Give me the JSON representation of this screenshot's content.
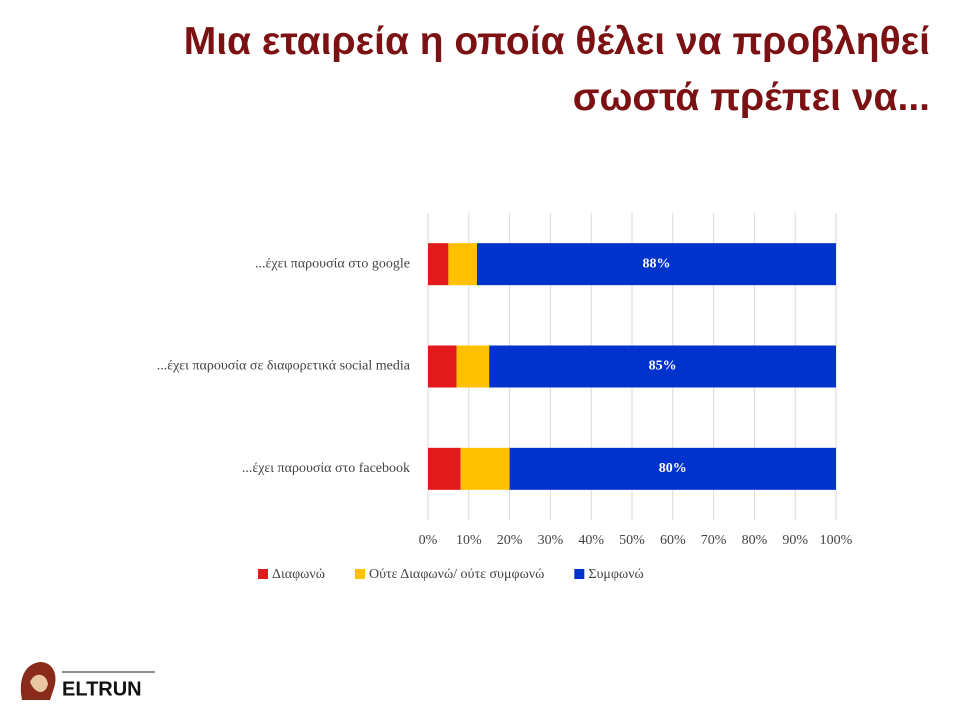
{
  "title": "Μια εταιρεία η οποία θέλει να προβληθεί σωστά πρέπει να...",
  "chart_data": {
    "type": "stacked_barh",
    "categories": [
      "...έχει παρουσία στο google",
      "...έχει παρουσία σε διαφορετικά social media",
      "...έχει παρουσία στο facebook"
    ],
    "series": [
      {
        "name": "Διαφωνώ",
        "color": "#e31a1c",
        "values": [
          5,
          7,
          8
        ]
      },
      {
        "name": "Ούτε Διαφωνώ/ ούτε συμφωνώ",
        "color": "#ffc000",
        "values": [
          7,
          8,
          12
        ]
      },
      {
        "name": "Συμφωνώ",
        "color": "#0033cc",
        "values": [
          88,
          85,
          80
        ],
        "value_labels": [
          "88%",
          "85%",
          "80%"
        ]
      }
    ],
    "xlim": [
      0,
      100
    ],
    "xticks": [
      {
        "value": 0,
        "label": "0%"
      },
      {
        "value": 10,
        "label": "10%"
      },
      {
        "value": 20,
        "label": "20%"
      },
      {
        "value": 30,
        "label": "30%"
      },
      {
        "value": 40,
        "label": "40%"
      },
      {
        "value": 50,
        "label": "50%"
      },
      {
        "value": 60,
        "label": "60%"
      },
      {
        "value": 70,
        "label": "70%"
      },
      {
        "value": 80,
        "label": "80%"
      },
      {
        "value": 90,
        "label": "90%"
      },
      {
        "value": 100,
        "label": "100%"
      }
    ],
    "grid": true,
    "legend": "bottom"
  },
  "logo": {
    "name": "ELTRUN"
  }
}
